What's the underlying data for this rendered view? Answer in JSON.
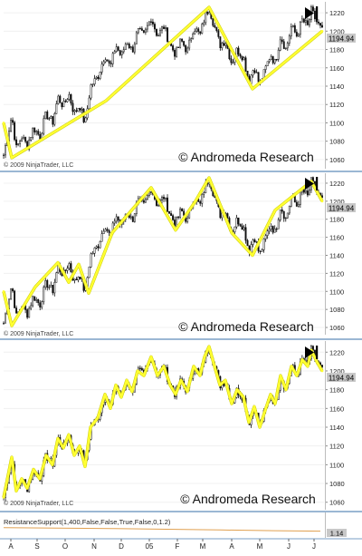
{
  "colors": {
    "price": "#111111",
    "zigzag": "#ffff33",
    "zigzag_outline": "#c8c800",
    "oscillator": "#e0a050",
    "axis_text": "#222222",
    "tag_bg": "#c8c8c8",
    "panel_border": "#7a9fc6",
    "grid": "#f0f0f0",
    "background": "#ffffff"
  },
  "watermark": "© Andromeda Research",
  "copyright": "© 2009 NinjaTrader, LLC",
  "indicator_label": "ResistanceSupport(1,400,False,False,True,False,0,1.2)",
  "price_tag": "1194.94",
  "osc_tag": "1.14",
  "icon": "play-bar-icon",
  "chart_data": [
    {
      "type": "line",
      "title": "",
      "y_ticks": [
        1060,
        1080,
        1100,
        1120,
        1140,
        1160,
        1180,
        1200,
        1220
      ],
      "ylim": [
        1052,
        1228
      ],
      "x_ticks": [
        "A",
        "S",
        "O",
        "N",
        "D",
        "05",
        "F",
        "M",
        "A",
        "M",
        "J",
        "J"
      ],
      "series": [
        {
          "name": "",
          "x": [
            0,
            9,
            113,
            227,
            275,
            352
          ],
          "y": [
            1100,
            1062,
            1124,
            1226,
            1137,
            1200
          ]
        }
      ]
    },
    {
      "type": "line",
      "title": "",
      "y_ticks": [
        1060,
        1080,
        1100,
        1120,
        1140,
        1160,
        1180,
        1200,
        1220
      ],
      "ylim": [
        1052,
        1228
      ],
      "x_ticks": [
        "A",
        "S",
        "O",
        "N",
        "D",
        "05",
        "F",
        "M",
        "A",
        "M",
        "J",
        "J"
      ],
      "series": [
        {
          "name": "",
          "x": [
            0,
            9,
            35,
            60,
            72,
            83,
            94,
            120,
            163,
            190,
            212,
            227,
            252,
            275,
            300,
            340,
            352
          ],
          "y": [
            1100,
            1062,
            1105,
            1132,
            1110,
            1130,
            1098,
            1165,
            1215,
            1168,
            1200,
            1226,
            1165,
            1140,
            1190,
            1222,
            1200
          ]
        }
      ]
    },
    {
      "type": "line",
      "title": "",
      "y_ticks": [
        1060,
        1080,
        1100,
        1120,
        1140,
        1160,
        1180,
        1200,
        1220
      ],
      "ylim": [
        1052,
        1228
      ],
      "x_ticks": [
        "A",
        "S",
        "O",
        "N",
        "D",
        "05",
        "F",
        "M",
        "A",
        "M",
        "J",
        "J"
      ],
      "series": [
        {
          "name": "",
          "x": [
            0,
            9,
            14,
            20,
            26,
            33,
            40,
            47,
            54,
            60,
            66,
            72,
            78,
            84,
            90,
            96,
            104,
            112,
            118,
            124,
            130,
            136,
            142,
            148,
            155,
            163,
            170,
            177,
            184,
            190,
            196,
            203,
            210,
            217,
            222,
            227,
            233,
            239,
            245,
            252,
            258,
            265,
            271,
            277,
            283,
            289,
            295,
            300,
            306,
            312,
            318,
            324,
            330,
            336,
            340,
            346,
            352
          ],
          "y": [
            1065,
            1108,
            1072,
            1085,
            1075,
            1095,
            1085,
            1110,
            1100,
            1128,
            1118,
            1132,
            1110,
            1120,
            1098,
            1140,
            1150,
            1175,
            1160,
            1185,
            1172,
            1190,
            1178,
            1200,
            1195,
            1215,
            1195,
            1205,
            1185,
            1175,
            1190,
            1178,
            1205,
            1195,
            1215,
            1226,
            1205,
            1185,
            1190,
            1165,
            1180,
            1172,
            1145,
            1162,
            1140,
            1158,
            1175,
            1165,
            1195,
            1180,
            1205,
            1195,
            1212,
            1205,
            1222,
            1210,
            1200
          ]
        }
      ]
    },
    {
      "type": "area",
      "title": "",
      "ylim": [
        0,
        2
      ],
      "series": [
        {
          "name": "",
          "x": [
            0,
            60,
            120,
            180,
            240,
            300,
            350
          ],
          "y": [
            1.72,
            1.66,
            1.58,
            1.46,
            1.34,
            1.22,
            1.14
          ]
        }
      ]
    }
  ]
}
